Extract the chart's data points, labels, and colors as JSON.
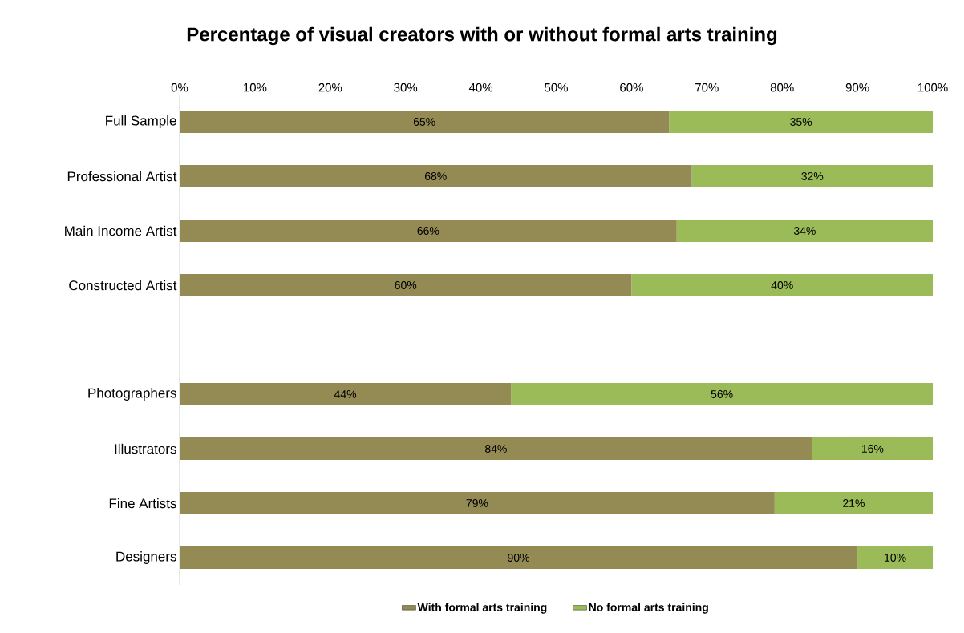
{
  "chart_data": {
    "type": "bar",
    "orientation": "horizontal",
    "stacked": true,
    "title": "Percentage of visual creators with or without formal arts training",
    "categories": [
      "Full Sample",
      "Professional Artist",
      "Main Income Artist",
      "Constructed Artist",
      null,
      "Photographers",
      "Illustrators",
      "Fine Artists",
      "Designers"
    ],
    "series": [
      {
        "name": "With formal arts training",
        "color": "#948a54",
        "values": [
          65,
          68,
          66,
          60,
          null,
          44,
          84,
          79,
          90
        ],
        "value_labels": [
          "65%",
          "68%",
          "66%",
          "60%",
          null,
          "44%",
          "84%",
          "79%",
          "90%"
        ]
      },
      {
        "name": "No formal arts training",
        "color": "#9bbb59",
        "values": [
          35,
          32,
          34,
          40,
          null,
          56,
          16,
          21,
          10
        ],
        "value_labels": [
          "35%",
          "32%",
          "34%",
          "40%",
          null,
          "56%",
          "16%",
          "21%",
          "10%"
        ]
      }
    ],
    "xlim": [
      0,
      100
    ],
    "xticks": [
      {
        "value": 0,
        "label": "0%"
      },
      {
        "value": 10,
        "label": "10%"
      },
      {
        "value": 20,
        "label": "20%"
      },
      {
        "value": 30,
        "label": "30%"
      },
      {
        "value": 40,
        "label": "40%"
      },
      {
        "value": 50,
        "label": "50%"
      },
      {
        "value": 60,
        "label": "60%"
      },
      {
        "value": 70,
        "label": "70%"
      },
      {
        "value": 80,
        "label": "80%"
      },
      {
        "value": 90,
        "label": "90%"
      },
      {
        "value": 100,
        "label": "100%"
      }
    ],
    "grid": false,
    "legend": "bottom"
  }
}
